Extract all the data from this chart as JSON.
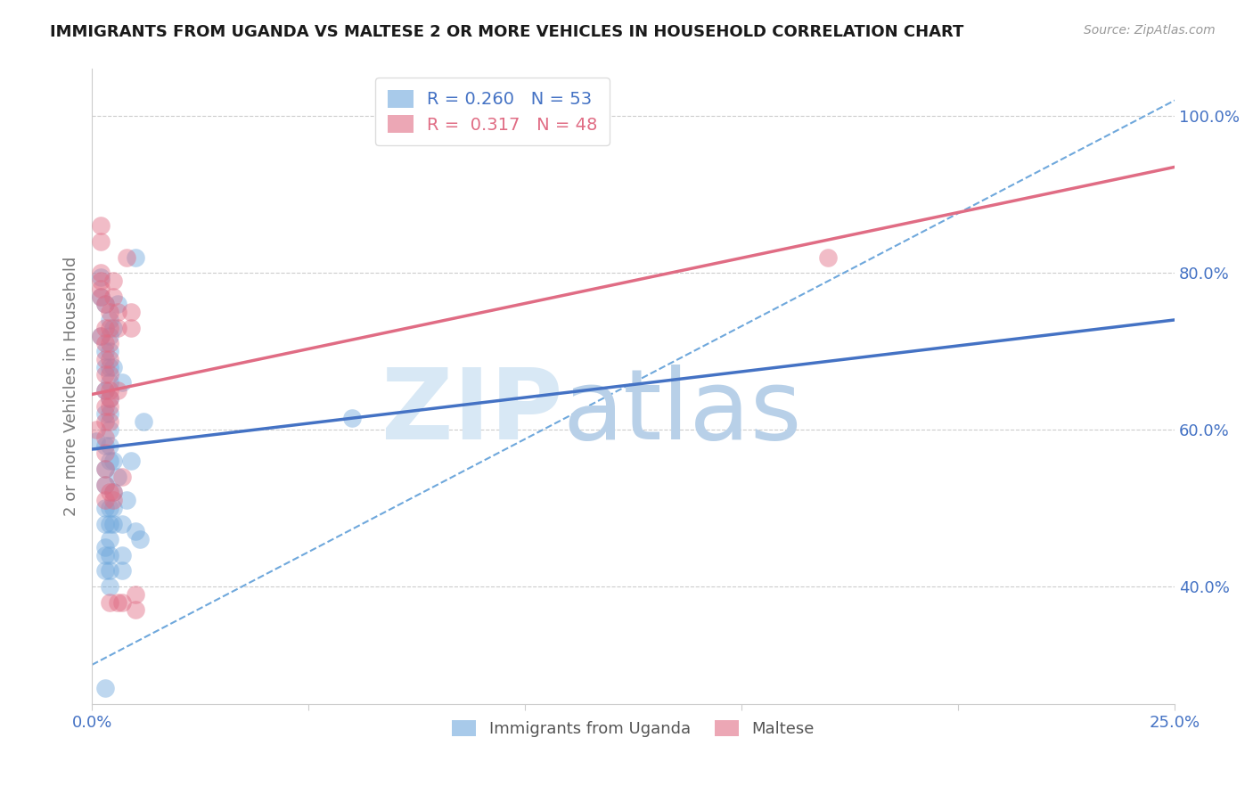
{
  "title": "IMMIGRANTS FROM UGANDA VS MALTESE 2 OR MORE VEHICLES IN HOUSEHOLD CORRELATION CHART",
  "source": "Source: ZipAtlas.com",
  "ylabel": "2 or more Vehicles in Household",
  "xlim": [
    0.0,
    0.25
  ],
  "ylim": [
    0.25,
    1.06
  ],
  "blue_color": "#6fa8dc",
  "pink_color": "#e06c84",
  "blue_scatter": [
    [
      0.001,
      0.585
    ],
    [
      0.002,
      0.795
    ],
    [
      0.002,
      0.77
    ],
    [
      0.002,
      0.72
    ],
    [
      0.003,
      0.76
    ],
    [
      0.003,
      0.68
    ],
    [
      0.003,
      0.7
    ],
    [
      0.003,
      0.65
    ],
    [
      0.003,
      0.62
    ],
    [
      0.003,
      0.58
    ],
    [
      0.003,
      0.55
    ],
    [
      0.003,
      0.53
    ],
    [
      0.003,
      0.5
    ],
    [
      0.003,
      0.48
    ],
    [
      0.003,
      0.45
    ],
    [
      0.003,
      0.44
    ],
    [
      0.003,
      0.42
    ],
    [
      0.004,
      0.74
    ],
    [
      0.004,
      0.72
    ],
    [
      0.004,
      0.7
    ],
    [
      0.004,
      0.68
    ],
    [
      0.004,
      0.66
    ],
    [
      0.004,
      0.64
    ],
    [
      0.004,
      0.62
    ],
    [
      0.004,
      0.6
    ],
    [
      0.004,
      0.58
    ],
    [
      0.004,
      0.56
    ],
    [
      0.004,
      0.5
    ],
    [
      0.004,
      0.48
    ],
    [
      0.004,
      0.46
    ],
    [
      0.004,
      0.44
    ],
    [
      0.004,
      0.42
    ],
    [
      0.004,
      0.4
    ],
    [
      0.005,
      0.73
    ],
    [
      0.005,
      0.68
    ],
    [
      0.005,
      0.56
    ],
    [
      0.005,
      0.52
    ],
    [
      0.005,
      0.5
    ],
    [
      0.005,
      0.48
    ],
    [
      0.006,
      0.76
    ],
    [
      0.006,
      0.54
    ],
    [
      0.007,
      0.66
    ],
    [
      0.007,
      0.48
    ],
    [
      0.007,
      0.44
    ],
    [
      0.007,
      0.42
    ],
    [
      0.008,
      0.51
    ],
    [
      0.009,
      0.56
    ],
    [
      0.01,
      0.82
    ],
    [
      0.01,
      0.47
    ],
    [
      0.011,
      0.46
    ],
    [
      0.012,
      0.61
    ],
    [
      0.06,
      0.615
    ],
    [
      0.003,
      0.27
    ]
  ],
  "pink_scatter": [
    [
      0.001,
      0.6
    ],
    [
      0.002,
      0.86
    ],
    [
      0.002,
      0.84
    ],
    [
      0.002,
      0.8
    ],
    [
      0.002,
      0.79
    ],
    [
      0.002,
      0.78
    ],
    [
      0.002,
      0.77
    ],
    [
      0.002,
      0.72
    ],
    [
      0.003,
      0.76
    ],
    [
      0.003,
      0.73
    ],
    [
      0.003,
      0.71
    ],
    [
      0.003,
      0.69
    ],
    [
      0.003,
      0.67
    ],
    [
      0.003,
      0.65
    ],
    [
      0.003,
      0.63
    ],
    [
      0.003,
      0.61
    ],
    [
      0.003,
      0.59
    ],
    [
      0.003,
      0.57
    ],
    [
      0.003,
      0.55
    ],
    [
      0.003,
      0.53
    ],
    [
      0.003,
      0.51
    ],
    [
      0.004,
      0.75
    ],
    [
      0.004,
      0.73
    ],
    [
      0.004,
      0.71
    ],
    [
      0.004,
      0.69
    ],
    [
      0.004,
      0.67
    ],
    [
      0.004,
      0.65
    ],
    [
      0.004,
      0.64
    ],
    [
      0.004,
      0.63
    ],
    [
      0.004,
      0.61
    ],
    [
      0.004,
      0.52
    ],
    [
      0.004,
      0.38
    ],
    [
      0.005,
      0.79
    ],
    [
      0.005,
      0.77
    ],
    [
      0.005,
      0.52
    ],
    [
      0.005,
      0.51
    ],
    [
      0.006,
      0.75
    ],
    [
      0.006,
      0.73
    ],
    [
      0.006,
      0.65
    ],
    [
      0.006,
      0.38
    ],
    [
      0.007,
      0.54
    ],
    [
      0.007,
      0.38
    ],
    [
      0.008,
      0.82
    ],
    [
      0.009,
      0.75
    ],
    [
      0.009,
      0.73
    ],
    [
      0.01,
      0.39
    ],
    [
      0.01,
      0.37
    ],
    [
      0.17,
      0.82
    ]
  ],
  "blue_line": [
    [
      0.0,
      0.575
    ],
    [
      0.25,
      0.74
    ]
  ],
  "pink_line": [
    [
      0.0,
      0.645
    ],
    [
      0.25,
      0.935
    ]
  ],
  "dashed_line": [
    [
      0.0,
      0.3
    ],
    [
      0.25,
      1.02
    ]
  ],
  "ytick_vals": [
    0.4,
    0.6,
    0.8,
    1.0
  ],
  "ytick_labels": [
    "40.0%",
    "60.0%",
    "80.0%",
    "100.0%"
  ],
  "xtick_positions": [
    0.0,
    0.05,
    0.1,
    0.15,
    0.2,
    0.25
  ],
  "xtick_labels": [
    "0.0%",
    "",
    "",
    "",
    "",
    "25.0%"
  ],
  "legend1_labels": [
    "R = 0.260   N = 53",
    "R =  0.317   N = 48"
  ],
  "legend1_colors": [
    "#6fa8dc",
    "#e06c84"
  ],
  "legend2_labels": [
    "Immigrants from Uganda",
    "Maltese"
  ],
  "legend2_colors": [
    "#6fa8dc",
    "#e06c84"
  ],
  "title_fontsize": 13,
  "tick_color": "#4472c4",
  "grid_color": "#cccccc",
  "axis_label_color": "#777777",
  "watermark_zip_color": "#d8e8f5",
  "watermark_atlas_color": "#b8d0e8"
}
